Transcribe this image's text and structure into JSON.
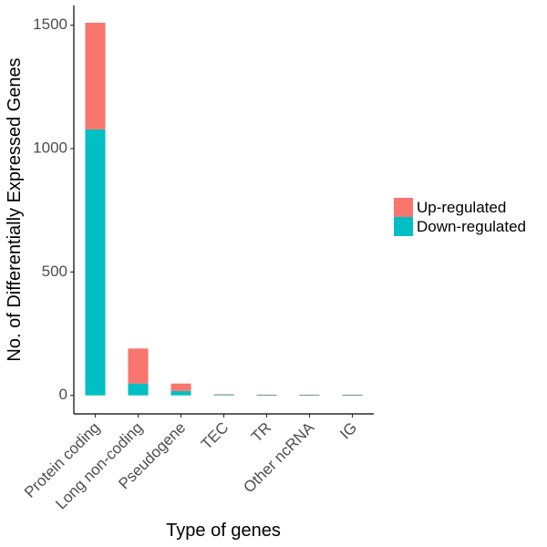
{
  "chart_data": {
    "type": "bar",
    "stacked": true,
    "categories": [
      "Protein coding",
      "Long non-coding",
      "Pseudogene",
      "TEC",
      "TR",
      "Other ncRNA",
      "IG"
    ],
    "series": [
      {
        "name": "Down-regulated",
        "color": "#00BFC4",
        "values": [
          1078,
          48,
          18,
          3,
          1,
          1,
          1
        ]
      },
      {
        "name": "Up-regulated",
        "color": "#F8766D",
        "values": [
          432,
          142,
          30,
          2,
          2,
          2,
          2
        ]
      }
    ],
    "legend_order": [
      "Up-regulated",
      "Down-regulated"
    ],
    "legend_position": "right",
    "title": "",
    "xlabel": "Type of genes",
    "ylabel": "No. of Differentially Expressed Genes",
    "ylim": [
      -75,
      1580
    ],
    "yticks": [
      0,
      500,
      1000,
      1500
    ],
    "grid": false
  }
}
